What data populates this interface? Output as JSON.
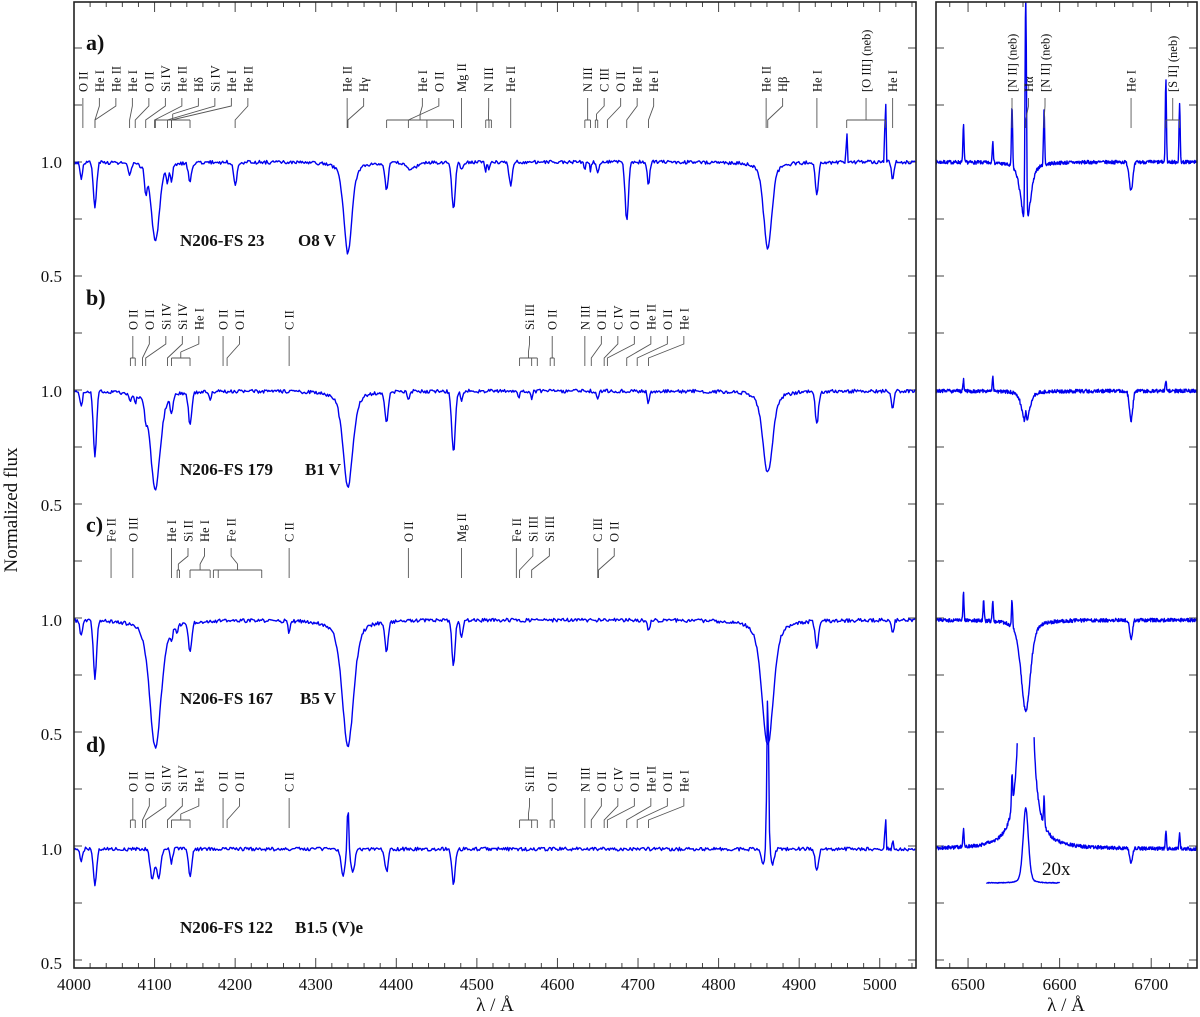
{
  "chart_data": {
    "type": "line",
    "ylabel": "Normalized flux",
    "xlabel": "λ / Å",
    "x_panels": [
      {
        "name": "blue",
        "xlim": [
          4000,
          5045
        ],
        "ticks": [
          4000,
          4100,
          4200,
          4300,
          4400,
          4500,
          4600,
          4700,
          4800,
          4900,
          5000
        ]
      },
      {
        "name": "red",
        "xlim": [
          6465,
          6750
        ],
        "ticks": [
          6500,
          6600,
          6700
        ]
      }
    ],
    "y_tick_labels": [
      "1.0",
      "0.5"
    ],
    "offset_between_spectra": 1.0,
    "inset": {
      "label": "20x",
      "scale": 20,
      "panel": "d",
      "center": 6563
    },
    "spectra": [
      {
        "panel": "a)",
        "star": "N206-FS 23",
        "sptype": "O8 V",
        "clip": null,
        "blue_lines": [
          [
            4009,
            0.93,
            1.5
          ],
          [
            4026,
            0.8,
            2
          ],
          [
            4069,
            0.95,
            2
          ],
          [
            4089,
            0.9,
            1.5
          ],
          [
            4101,
            0.65,
            5
          ],
          [
            4116,
            0.93,
            1.5
          ],
          [
            4121,
            0.93,
            1.5
          ],
          [
            4144,
            0.92,
            2
          ],
          [
            4200,
            0.9,
            2
          ],
          [
            4340,
            0.6,
            5
          ],
          [
            4388,
            0.88,
            2
          ],
          [
            4419,
            0.97,
            6
          ],
          [
            4471,
            0.79,
            2
          ],
          [
            4481,
            0.97,
            1.5
          ],
          [
            4511,
            0.96,
            1
          ],
          [
            4515,
            0.96,
            1
          ],
          [
            4542,
            0.9,
            2
          ],
          [
            4634,
            0.97,
            1
          ],
          [
            4641,
            0.96,
            1
          ],
          [
            4650,
            0.96,
            1.5
          ],
          [
            4686,
            0.74,
            2
          ],
          [
            4713,
            0.9,
            1.5
          ],
          [
            4861,
            0.62,
            5
          ],
          [
            4922,
            0.86,
            2
          ],
          [
            4959,
            1.16,
            0.6
          ],
          [
            5007,
            1.35,
            0.6
          ],
          [
            5016,
            0.92,
            1.5
          ]
        ],
        "red_lines": [
          [
            6495,
            1.17,
            0.6
          ],
          [
            6527,
            1.1,
            0.6
          ],
          [
            6548,
            1.27,
            0.6
          ],
          [
            6563,
            0.72,
            5
          ],
          [
            6563,
            2.0,
            0.8
          ],
          [
            6583,
            1.25,
            0.6
          ],
          [
            6678,
            0.88,
            2
          ],
          [
            6716,
            1.36,
            0.6
          ],
          [
            6731,
            1.25,
            0.6
          ]
        ],
        "labels": [
          {
            "t": "O II",
            "w": [
              4011
            ]
          },
          {
            "t": "He I",
            "w": [
              4026
            ]
          },
          {
            "t": "He II",
            "w": [
              4026
            ]
          },
          {
            "t": "He I",
            "w": [
              4069
            ]
          },
          {
            "t": "O II",
            "w": [
              4076
            ]
          },
          {
            "t": "Si IV",
            "w": [
              4089
            ]
          },
          {
            "t": "He II",
            "w": [
              4100
            ]
          },
          {
            "t": "Hδ",
            "w": [
              4101,
              4121,
              4144
            ]
          },
          {
            "t": "Si IV",
            "w": [
              4116
            ]
          },
          {
            "t": "He I",
            "w": [
              4121
            ]
          },
          {
            "t": "He II",
            "w": [
              4200
            ]
          },
          {
            "t": "He II",
            "w": [
              4339
            ]
          },
          {
            "t": "Hγ",
            "w": [
              4340
            ]
          },
          {
            "t": "He I",
            "w": [
              4388,
              4438,
              4471
            ]
          },
          {
            "t": "O II",
            "w": [
              4415
            ]
          },
          {
            "t": "Mg II",
            "w": [
              4481
            ]
          },
          {
            "t": "N III",
            "w": [
              4511,
              4515,
              4518
            ]
          },
          {
            "t": "He II",
            "w": [
              4542
            ]
          },
          {
            "t": "N III",
            "w": [
              4634,
              4641
            ]
          },
          {
            "t": "C III",
            "w": [
              4647,
              4650
            ]
          },
          {
            "t": "O II",
            "w": [
              4662
            ]
          },
          {
            "t": "He II",
            "w": [
              4686
            ]
          },
          {
            "t": "He I",
            "w": [
              4713
            ]
          },
          {
            "t": "He II",
            "w": [
              4859
            ]
          },
          {
            "t": "Hβ",
            "w": [
              4861
            ]
          },
          {
            "t": "He I",
            "w": [
              4922
            ]
          },
          {
            "t": "[O III] (neb)",
            "w": [
              4959,
              5007
            ]
          },
          {
            "t": "He I",
            "w": [
              5016
            ]
          }
        ],
        "red_labels": [
          {
            "t": "[N II] (neb)",
            "w": [
              6548
            ]
          },
          {
            "t": "Hα",
            "w": [
              6563
            ]
          },
          {
            "t": "[N II] (neb)",
            "w": [
              6583
            ]
          },
          {
            "t": "He I",
            "w": [
              6678
            ]
          },
          {
            "t": "[S II] (neb)",
            "w": [
              6716,
              6731
            ]
          }
        ]
      },
      {
        "panel": "b)",
        "star": "N206-FS 179",
        "sptype": "B1 V",
        "clip": null,
        "blue_lines": [
          [
            4009,
            0.93,
            1.5
          ],
          [
            4026,
            0.72,
            2
          ],
          [
            4070,
            0.96,
            1.5
          ],
          [
            4076,
            0.96,
            1.2
          ],
          [
            4089,
            0.94,
            1.5
          ],
          [
            4101,
            0.57,
            6
          ],
          [
            4121,
            0.92,
            1.5
          ],
          [
            4144,
            0.86,
            2
          ],
          [
            4169,
            0.97,
            1.5
          ],
          [
            4340,
            0.58,
            6
          ],
          [
            4388,
            0.86,
            2
          ],
          [
            4415,
            0.97,
            1.5
          ],
          [
            4471,
            0.73,
            2.2
          ],
          [
            4481,
            0.96,
            1.5
          ],
          [
            4552,
            0.97,
            1
          ],
          [
            4568,
            0.97,
            1
          ],
          [
            4650,
            0.96,
            1.5
          ],
          [
            4713,
            0.95,
            1.5
          ],
          [
            4861,
            0.64,
            6
          ],
          [
            4922,
            0.86,
            2
          ],
          [
            5016,
            0.92,
            1.5
          ]
        ],
        "red_lines": [
          [
            6563,
            0.86,
            4
          ],
          [
            6563,
            1.05,
            0.6
          ],
          [
            6495,
            1.05,
            0.6
          ],
          [
            6527,
            1.06,
            0.6
          ],
          [
            6678,
            0.87,
            1.8
          ],
          [
            6716,
            1.05,
            0.6
          ]
        ],
        "labels": [
          {
            "t": "O II",
            "w": [
              4070,
              4076
            ]
          },
          {
            "t": "O II",
            "w": [
              4085
            ]
          },
          {
            "t": "Si IV",
            "w": [
              4089
            ]
          },
          {
            "t": "Si IV",
            "w": [
              4116
            ]
          },
          {
            "t": "He I",
            "w": [
              4121,
              4144
            ]
          },
          {
            "t": "O II",
            "w": [
              4185
            ]
          },
          {
            "t": "O II",
            "w": [
              4190
            ]
          },
          {
            "t": "C II",
            "w": [
              4267
            ]
          },
          {
            "t": "Si III",
            "w": [
              4553,
              4568,
              4575
            ]
          },
          {
            "t": "O II",
            "w": [
              4591,
              4596
            ]
          },
          {
            "t": "N III",
            "w": [
              4634
            ]
          },
          {
            "t": "O II",
            "w": [
              4642
            ]
          },
          {
            "t": "C IV",
            "w": [
              4658
            ]
          },
          {
            "t": "O II",
            "w": [
              4662
            ]
          },
          {
            "t": "He II",
            "w": [
              4686
            ]
          },
          {
            "t": "O II",
            "w": [
              4699
            ]
          },
          {
            "t": "He I",
            "w": [
              4713
            ]
          }
        ],
        "red_labels": []
      },
      {
        "panel": "c)",
        "star": "N206-FS 167",
        "sptype": "B5 V",
        "clip": null,
        "blue_lines": [
          [
            4009,
            0.93,
            1.5
          ],
          [
            4026,
            0.75,
            2
          ],
          [
            4101,
            0.44,
            7
          ],
          [
            4121,
            0.95,
            1.5
          ],
          [
            4128,
            0.97,
            1
          ],
          [
            4144,
            0.87,
            2
          ],
          [
            4267,
            0.95,
            1.5
          ],
          [
            4340,
            0.45,
            7
          ],
          [
            4388,
            0.87,
            2
          ],
          [
            4471,
            0.8,
            2
          ],
          [
            4481,
            0.92,
            1.5
          ],
          [
            4713,
            0.95,
            1.5
          ],
          [
            4861,
            0.45,
            7
          ],
          [
            4922,
            0.88,
            2
          ],
          [
            5016,
            0.94,
            1.5
          ]
        ],
        "red_lines": [
          [
            6563,
            0.6,
            5
          ],
          [
            6495,
            1.12,
            0.6
          ],
          [
            6517,
            1.1,
            0.6
          ],
          [
            6527,
            1.09,
            0.6
          ],
          [
            6548,
            1.12,
            0.6
          ],
          [
            6678,
            0.92,
            1.5
          ]
        ],
        "labels": [
          {
            "t": "Fe II",
            "w": [
              4046
            ]
          },
          {
            "t": "O III",
            "w": [
              4073
            ]
          },
          {
            "t": "He I",
            "w": [
              4121
            ]
          },
          {
            "t": "Si II",
            "w": [
              4128,
              4131
            ]
          },
          {
            "t": "He I",
            "w": [
              4144,
              4169
            ]
          },
          {
            "t": "Fe II",
            "w": [
              4173,
              4179,
              4233
            ]
          },
          {
            "t": "C II",
            "w": [
              4267
            ]
          },
          {
            "t": "O II",
            "w": [
              4415
            ]
          },
          {
            "t": "Mg II",
            "w": [
              4481
            ]
          },
          {
            "t": "Fe II",
            "w": [
              4549
            ]
          },
          {
            "t": "Si III",
            "w": [
              4553
            ]
          },
          {
            "t": "Si III",
            "w": [
              4568
            ]
          },
          {
            "t": "C III",
            "w": [
              4650
            ]
          },
          {
            "t": "O II",
            "w": [
              4651
            ]
          }
        ],
        "red_labels": []
      },
      {
        "panel": "d)",
        "star": "N206-FS 122",
        "sptype": "B1.5 (V)e",
        "clip": 1.5,
        "blue_lines": [
          [
            4009,
            0.94,
            1.5
          ],
          [
            4026,
            0.84,
            2
          ],
          [
            4097,
            0.87,
            2.5
          ],
          [
            4105,
            0.87,
            2.5
          ],
          [
            4121,
            0.94,
            1.5
          ],
          [
            4144,
            0.88,
            2
          ],
          [
            4334,
            0.88,
            2.5
          ],
          [
            4340,
            1.2,
            1
          ],
          [
            4346,
            0.9,
            2.5
          ],
          [
            4388,
            0.9,
            2
          ],
          [
            4471,
            0.85,
            2
          ],
          [
            4855,
            0.93,
            2
          ],
          [
            4861,
            1.7,
            1.1
          ],
          [
            4867,
            0.93,
            2
          ],
          [
            4922,
            0.9,
            2
          ],
          [
            5007,
            1.17,
            0.6
          ],
          [
            5016,
            1.06,
            0.6
          ]
        ],
        "red_lines": [
          [
            6563,
            7.6,
            3
          ],
          [
            6495,
            1.08,
            0.6
          ],
          [
            6548,
            1.15,
            0.6
          ],
          [
            6583,
            1.12,
            0.6
          ],
          [
            6678,
            0.94,
            1.5
          ],
          [
            6716,
            1.08,
            0.6
          ],
          [
            6731,
            1.07,
            0.6
          ]
        ],
        "labels": [
          {
            "t": "O II",
            "w": [
              4070,
              4076
            ]
          },
          {
            "t": "O II",
            "w": [
              4085
            ]
          },
          {
            "t": "Si IV",
            "w": [
              4089
            ]
          },
          {
            "t": "Si IV",
            "w": [
              4116
            ]
          },
          {
            "t": "He I",
            "w": [
              4121,
              4144
            ]
          },
          {
            "t": "O II",
            "w": [
              4185
            ]
          },
          {
            "t": "O II",
            "w": [
              4190
            ]
          },
          {
            "t": "C II",
            "w": [
              4267
            ]
          },
          {
            "t": "Si III",
            "w": [
              4553,
              4568,
              4575
            ]
          },
          {
            "t": "O II",
            "w": [
              4591,
              4596
            ]
          },
          {
            "t": "N III",
            "w": [
              4634
            ]
          },
          {
            "t": "O II",
            "w": [
              4642
            ]
          },
          {
            "t": "C IV",
            "w": [
              4658
            ]
          },
          {
            "t": "O II",
            "w": [
              4662
            ]
          },
          {
            "t": "He II",
            "w": [
              4686
            ]
          },
          {
            "t": "O II",
            "w": [
              4699
            ]
          },
          {
            "t": "He I",
            "w": [
              4713
            ]
          }
        ],
        "red_labels": []
      }
    ],
    "colors": {
      "spectrum": "#0000ee",
      "annotation": "#555555",
      "axes": "#222222"
    }
  }
}
